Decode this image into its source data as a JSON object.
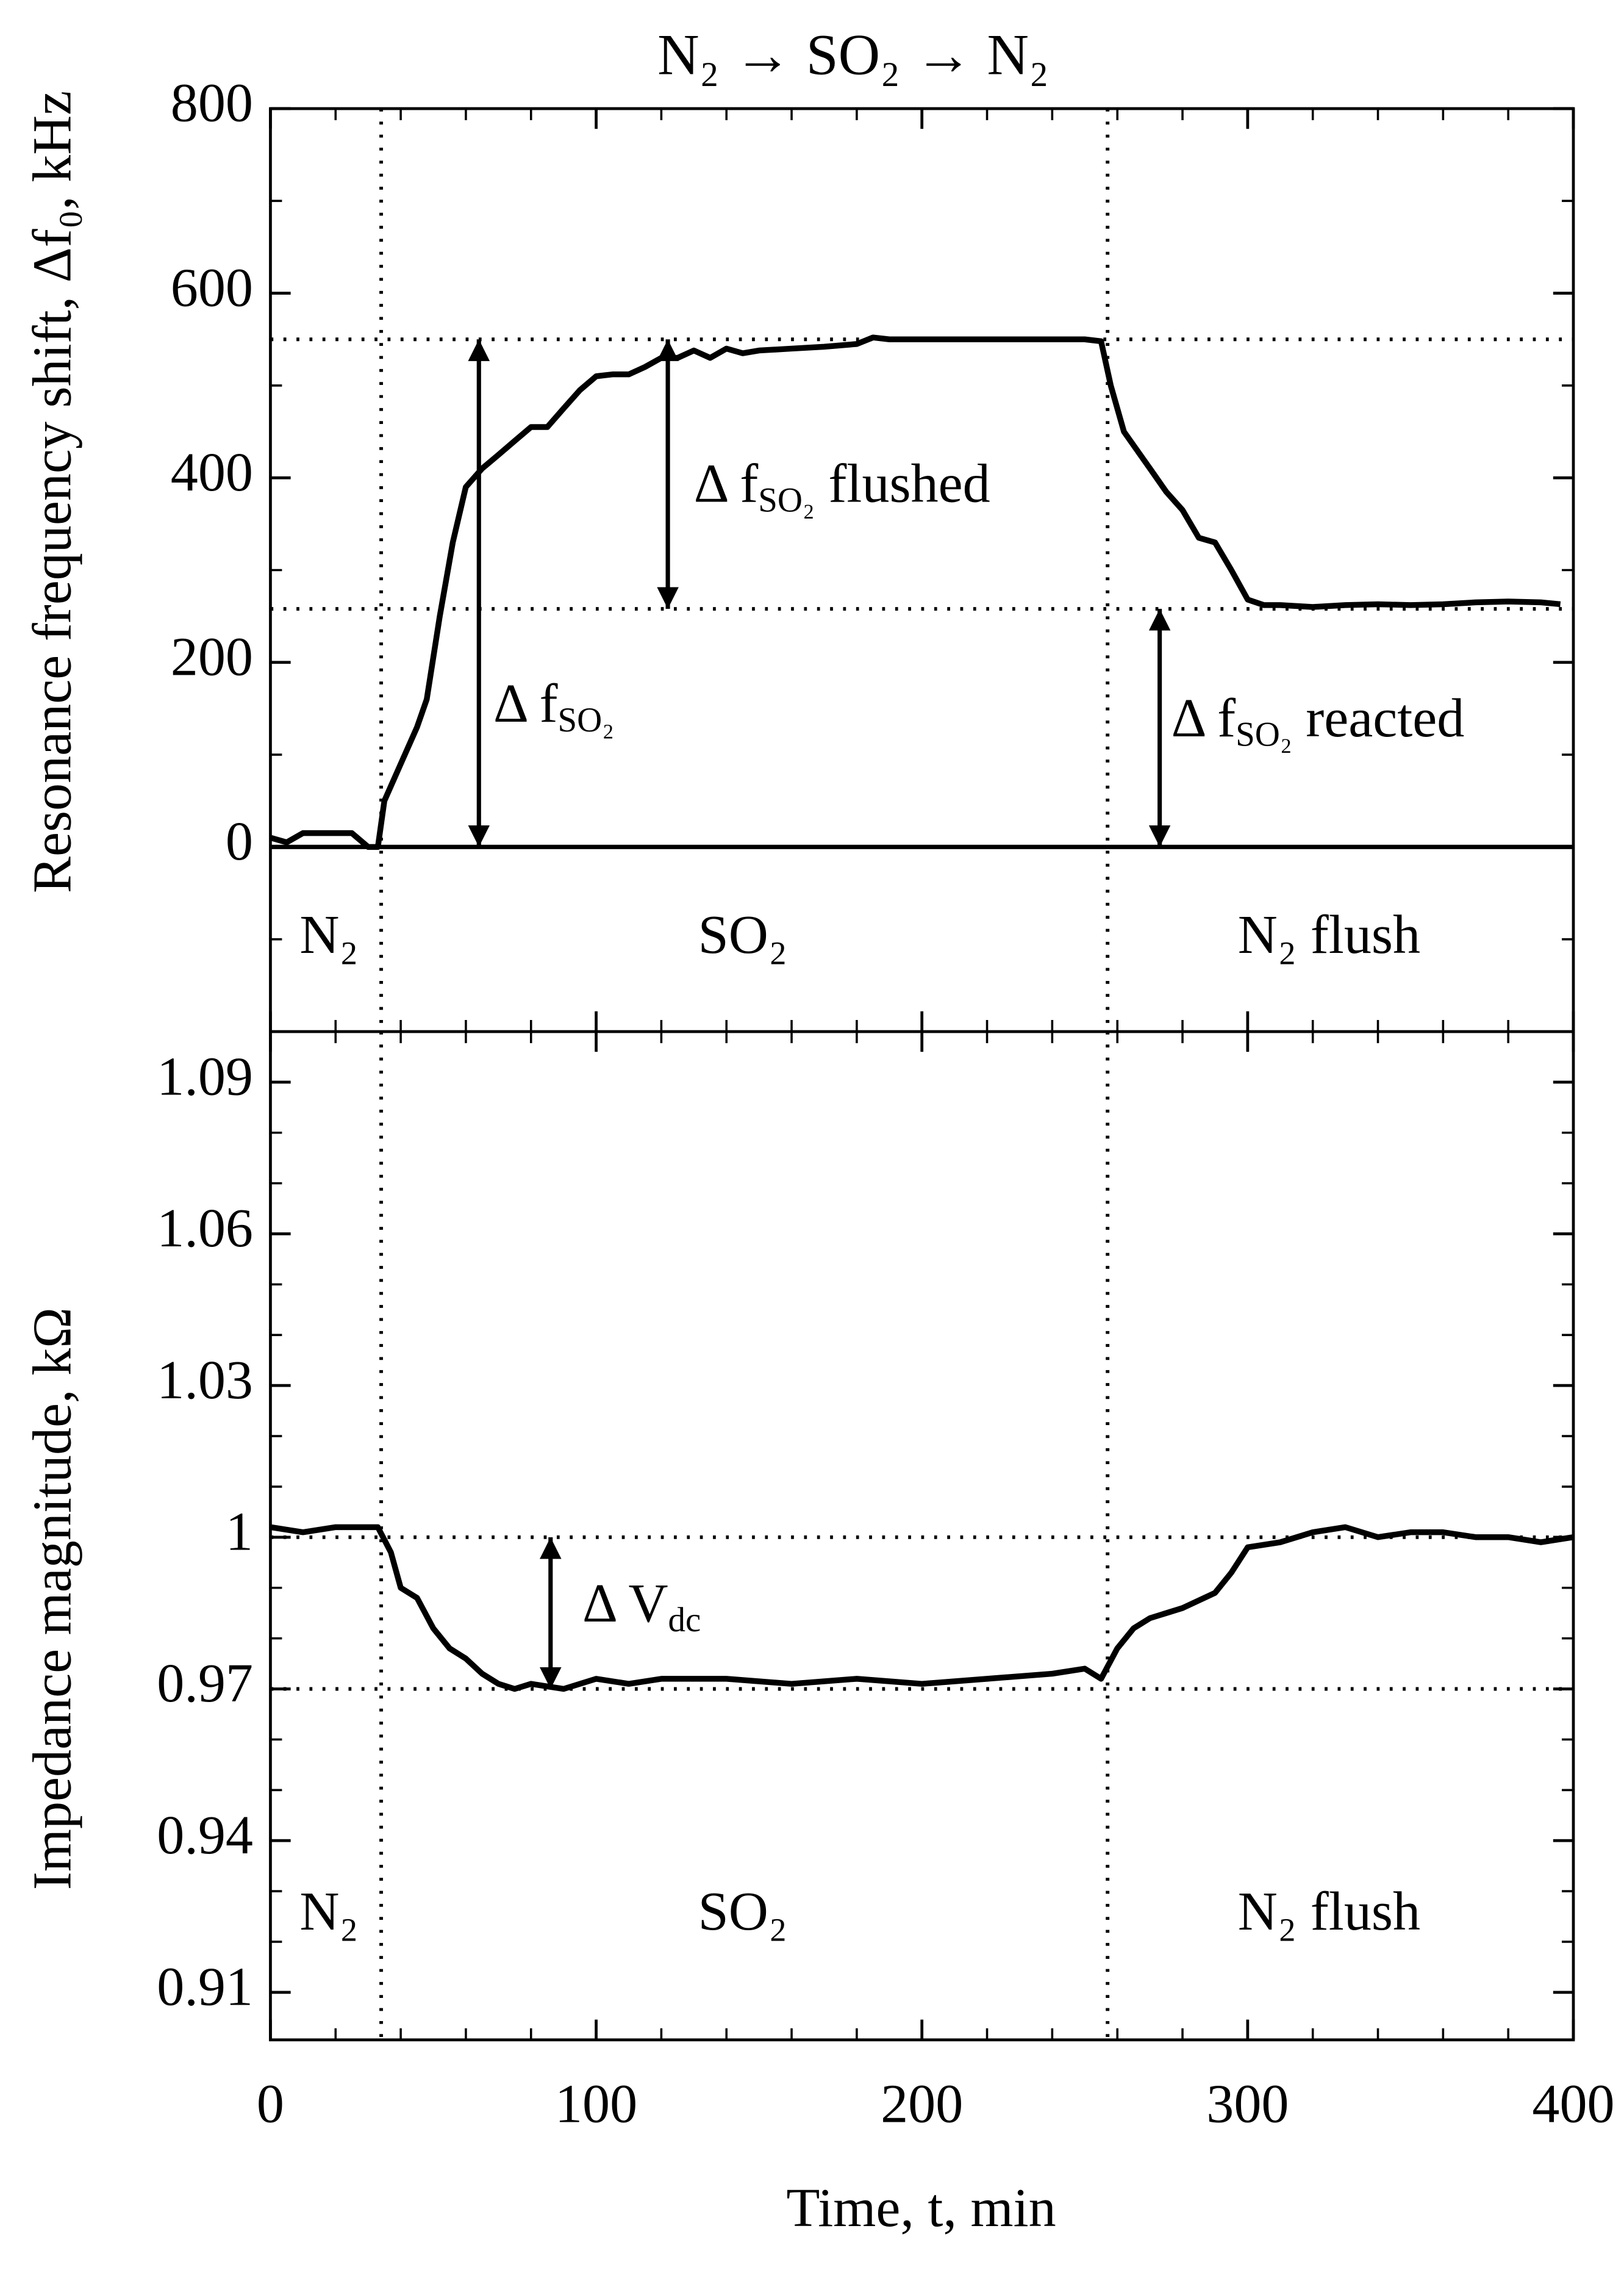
{
  "chart_data": [
    {
      "type": "line",
      "title": "N₂ → SO₂ → N₂",
      "y_label": "Resonance frequency shift, Δf₀, kHz",
      "x": [
        0,
        5,
        10,
        20,
        25,
        30,
        33,
        35,
        40,
        45,
        48,
        52,
        56,
        60,
        65,
        70,
        75,
        80,
        85,
        90,
        95,
        100,
        105,
        110,
        115,
        120,
        125,
        130,
        135,
        140,
        145,
        150,
        160,
        170,
        180,
        185,
        190,
        200,
        210,
        220,
        230,
        240,
        250,
        255,
        258,
        262,
        270,
        275,
        280,
        285,
        290,
        295,
        300,
        305,
        310,
        320,
        330,
        340,
        350,
        360,
        370,
        380,
        390,
        396
      ],
      "series": [
        {
          "color": "#000000",
          "values": [
            10,
            5,
            15,
            15,
            15,
            0,
            0,
            50,
            90,
            130,
            160,
            250,
            330,
            390,
            410,
            425,
            440,
            455,
            455,
            475,
            495,
            510,
            512,
            512,
            520,
            530,
            530,
            538,
            530,
            540,
            535,
            538,
            540,
            542,
            545,
            552,
            550,
            550,
            550,
            550,
            550,
            550,
            550,
            548,
            500,
            450,
            410,
            385,
            365,
            335,
            330,
            300,
            268,
            262,
            262,
            260,
            262,
            263,
            262,
            263,
            265,
            266,
            265,
            263
          ]
        }
      ],
      "xlim": [
        0,
        400
      ],
      "ylim": [
        -200,
        800
      ],
      "yticks": [
        0,
        200,
        400,
        600,
        800
      ],
      "baseline": 0,
      "hlines": [
        550,
        258
      ],
      "vlines": [
        34,
        257
      ],
      "arrows": [
        {
          "x": 64,
          "y1": 0,
          "y2": 550,
          "label": {
            "text": "Δ f",
            "sub": "SO₂"
          }
        },
        {
          "x": 122,
          "y1": 550,
          "y2": 258,
          "label": {
            "text": "Δ f",
            "sub": "SO₂",
            "after": " flushed"
          }
        },
        {
          "x": 273,
          "y1": 0,
          "y2": 258,
          "label": {
            "text": "Δ f",
            "sub": "SO₂",
            "after": " reacted"
          }
        }
      ],
      "regions": [
        "N₂",
        "SO₂",
        "N₂ flush"
      ]
    },
    {
      "type": "line",
      "y_label": "Impedance magnitude, kΩ",
      "x_label": "Time, t, min",
      "x": [
        0,
        10,
        20,
        33,
        37,
        40,
        45,
        50,
        55,
        60,
        65,
        70,
        75,
        80,
        90,
        100,
        110,
        120,
        140,
        160,
        180,
        200,
        220,
        240,
        250,
        255,
        260,
        265,
        270,
        280,
        290,
        295,
        300,
        310,
        320,
        330,
        340,
        350,
        360,
        370,
        380,
        390,
        400
      ],
      "series": [
        {
          "color": "#000000",
          "values": [
            1.002,
            1.001,
            1.002,
            1.002,
            0.997,
            0.99,
            0.988,
            0.982,
            0.978,
            0.976,
            0.973,
            0.971,
            0.97,
            0.971,
            0.97,
            0.972,
            0.971,
            0.972,
            0.972,
            0.971,
            0.972,
            0.971,
            0.972,
            0.973,
            0.974,
            0.972,
            0.978,
            0.982,
            0.984,
            0.986,
            0.989,
            0.993,
            0.998,
            0.999,
            1.001,
            1.002,
            1.0,
            1.001,
            1.001,
            1.0,
            1.0,
            0.999,
            1.0
          ]
        }
      ],
      "xlim": [
        0,
        400
      ],
      "xticks": [
        0,
        100,
        200,
        300,
        400
      ],
      "ylim": [
        0.9006,
        1.1
      ],
      "yticks": [
        0.91,
        0.94,
        0.97,
        1,
        1.03,
        1.06,
        1.09
      ],
      "hlines": [
        1,
        0.97
      ],
      "vlines": [
        34,
        257
      ],
      "arrows": [
        {
          "x": 86,
          "y1": 0.97,
          "y2": 1,
          "label": {
            "text": "Δ V",
            "sub": "dc"
          }
        }
      ],
      "regions": [
        "N₂",
        "SO₂",
        "N₂ flush"
      ]
    }
  ]
}
